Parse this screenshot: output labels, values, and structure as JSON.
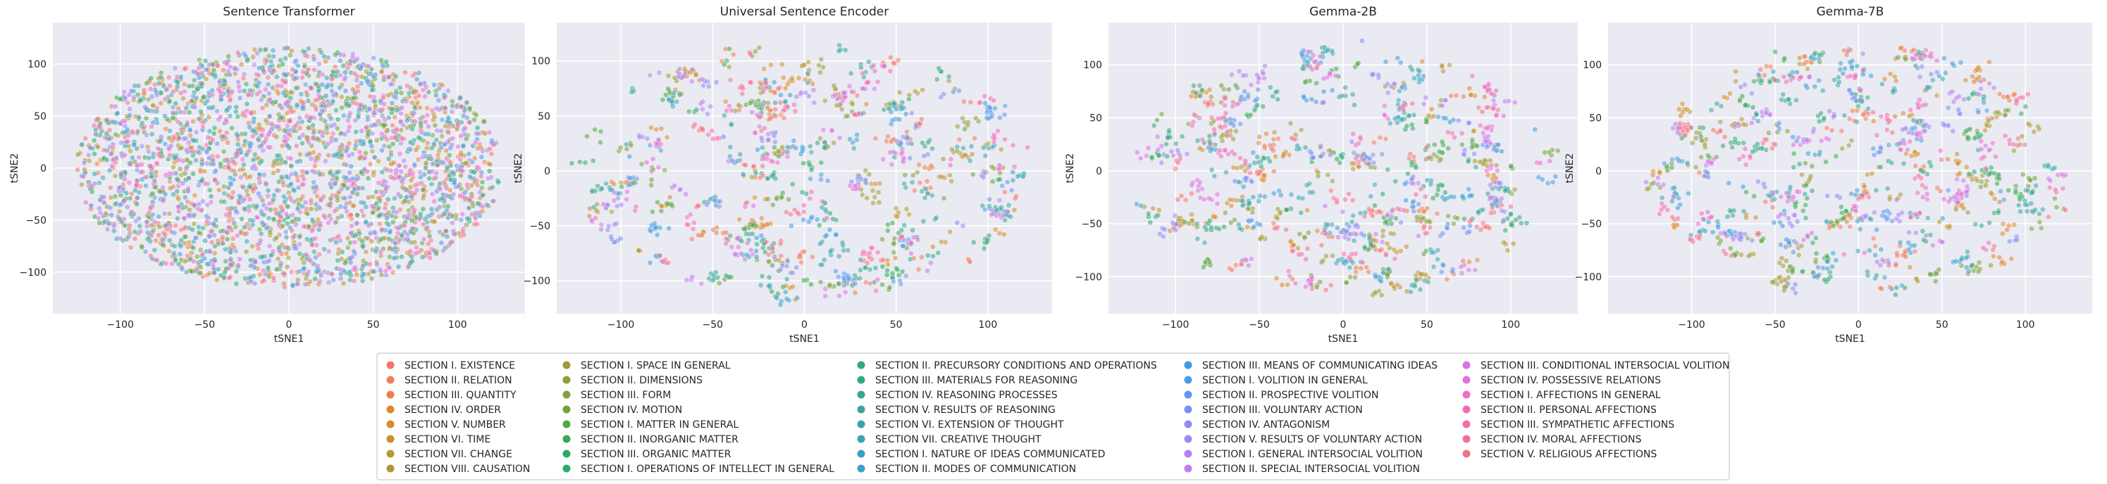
{
  "chart_data": [
    {
      "type": "scatter",
      "title": "Sentence Transformer",
      "xlabel": "tSNE1",
      "ylabel": "tSNE2",
      "xticks": [
        -100,
        -50,
        0,
        50,
        100
      ],
      "yticks": [
        100,
        50,
        0,
        -50,
        -100
      ],
      "xlim": [
        -140,
        140
      ],
      "ylim": [
        -140,
        140
      ],
      "grid": true,
      "spread": "dense",
      "points_per_section": 70
    },
    {
      "type": "scatter",
      "title": "Universal Sentence Encoder",
      "xlabel": "tSNE1",
      "ylabel": "tSNE2",
      "xticks": [
        -100,
        -50,
        0,
        50,
        100
      ],
      "yticks": [
        100,
        50,
        0,
        -50,
        -100
      ],
      "xlim": [
        -135,
        135
      ],
      "ylim": [
        -130,
        135
      ],
      "grid": true,
      "spread": "clustered",
      "points_per_section": 30
    },
    {
      "type": "scatter",
      "title": "Gemma-2B",
      "xlabel": "tSNE1",
      "ylabel": "tSNE2",
      "xticks": [
        -100,
        -50,
        0,
        50,
        100
      ],
      "yticks": [
        100,
        50,
        0,
        -50,
        -100
      ],
      "xlim": [
        -140,
        140
      ],
      "ylim": [
        -135,
        140
      ],
      "grid": true,
      "spread": "clustered",
      "points_per_section": 30
    },
    {
      "type": "scatter",
      "title": "Gemma-7B",
      "xlabel": "tSNE1",
      "ylabel": "tSNE2",
      "xticks": [
        -100,
        -50,
        0,
        50,
        100
      ],
      "yticks": [
        100,
        50,
        0,
        -50,
        -100
      ],
      "xlim": [
        -150,
        140
      ],
      "ylim": [
        -135,
        140
      ],
      "grid": true,
      "spread": "clustered",
      "points_per_section": 30
    }
  ],
  "legend": {
    "placement": "bottom-center",
    "columns": 5,
    "items": [
      {
        "label": "SECTION I. EXISTENCE",
        "color": "#f3766e"
      },
      {
        "label": "SECTION II. RELATION",
        "color": "#f07c5e"
      },
      {
        "label": "SECTION III. QUANTITY",
        "color": "#ea8248"
      },
      {
        "label": "SECTION IV. ORDER",
        "color": "#e0872f"
      },
      {
        "label": "SECTION V. NUMBER",
        "color": "#d48c2a"
      },
      {
        "label": "SECTION VI. TIME",
        "color": "#c8902e"
      },
      {
        "label": "SECTION VII. CHANGE",
        "color": "#bc9432"
      },
      {
        "label": "SECTION VIII. CAUSATION",
        "color": "#ae9835"
      },
      {
        "label": "SECTION I. SPACE IN GENERAL",
        "color": "#a19b35"
      },
      {
        "label": "SECTION II. DIMENSIONS",
        "color": "#929e36"
      },
      {
        "label": "SECTION III. FORM",
        "color": "#82a137"
      },
      {
        "label": "SECTION IV. MOTION",
        "color": "#6ea33a"
      },
      {
        "label": "SECTION I. MATTER IN GENERAL",
        "color": "#56a641"
      },
      {
        "label": "SECTION II. INORGANIC MATTER",
        "color": "#3aa84f"
      },
      {
        "label": "SECTION III. ORGANIC MATTER",
        "color": "#2ea960"
      },
      {
        "label": "SECTION I. OPERATIONS OF INTELLECT IN GENERAL",
        "color": "#31a86f"
      },
      {
        "label": "SECTION II. PRECURSORY CONDITIONS AND OPERATIONS",
        "color": "#33a87d"
      },
      {
        "label": "SECTION III. MATERIALS FOR REASONING",
        "color": "#35a789"
      },
      {
        "label": "SECTION IV. REASONING PROCESSES",
        "color": "#36a695"
      },
      {
        "label": "SECTION V. RESULTS OF REASONING",
        "color": "#37a6a0"
      },
      {
        "label": "SECTION VI. EXTENSION OF THOUGHT",
        "color": "#38a5ab"
      },
      {
        "label": "SECTION VII. CREATIVE THOUGHT",
        "color": "#39a4b6"
      },
      {
        "label": "SECTION I. NATURE OF IDEAS COMMUNICATED",
        "color": "#3aa2c2"
      },
      {
        "label": "SECTION II. MODES OF COMMUNICATION",
        "color": "#3ba0cf"
      },
      {
        "label": "SECTION III. MEANS OF COMMUNICATING IDEAS",
        "color": "#3d9ddd"
      },
      {
        "label": "SECTION I. VOLITION IN GENERAL",
        "color": "#4a99e8"
      },
      {
        "label": "SECTION II. PROSPECTIVE VOLITION",
        "color": "#6195ef"
      },
      {
        "label": "SECTION III. VOLUNTARY ACTION",
        "color": "#7890f2"
      },
      {
        "label": "SECTION IV. ANTAGONISM",
        "color": "#8e8bf3"
      },
      {
        "label": "SECTION V. RESULTS OF VOLUNTARY ACTION",
        "color": "#a286f2"
      },
      {
        "label": "SECTION I. GENERAL INTERSOCIAL VOLITION",
        "color": "#b580ef"
      },
      {
        "label": "SECTION II. SPECIAL INTERSOCIAL VOLITION",
        "color": "#c77bec"
      },
      {
        "label": "SECTION III. CONDITIONAL INTERSOCIAL VOLITION",
        "color": "#d874e6"
      },
      {
        "label": "SECTION IV. POSSESSIVE RELATIONS",
        "color": "#e46fdc"
      },
      {
        "label": "SECTION I. AFFECTIONS IN GENERAL",
        "color": "#ec6dcc"
      },
      {
        "label": "SECTION II. PERSONAL AFFECTIONS",
        "color": "#f16cbb"
      },
      {
        "label": "SECTION III. SYMPATHETIC AFFECTIONS",
        "color": "#f36daa"
      },
      {
        "label": "SECTION IV. MORAL  AFFECTIONS",
        "color": "#f46f98"
      },
      {
        "label": "SECTION V. RELIGIOUS AFFECTIONS",
        "color": "#f47285"
      }
    ]
  }
}
